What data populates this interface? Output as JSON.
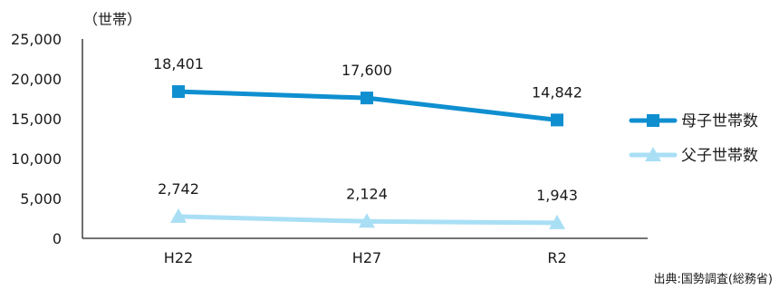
{
  "chart_data": {
    "type": "line",
    "unit_label": "（世帯）",
    "source": "出典:国勢調査(総務省)",
    "categories": [
      "H22",
      "H27",
      "R2"
    ],
    "y_ticks": [
      "0",
      "5,000",
      "10,000",
      "15,000",
      "20,000",
      "25,000"
    ],
    "ylim": [
      0,
      25000
    ],
    "grid": false,
    "legend_position": "right",
    "series": [
      {
        "name": "母子世帯数",
        "values": [
          18401,
          17600,
          14842
        ],
        "labels": [
          "18,401",
          "17,600",
          "14,842"
        ],
        "color": "#0f8fd0",
        "marker": "square"
      },
      {
        "name": "父子世帯数",
        "values": [
          2742,
          2124,
          1943
        ],
        "labels": [
          "2,742",
          "2,124",
          "1,943"
        ],
        "color": "#a9dff5",
        "marker": "triangle"
      }
    ]
  }
}
